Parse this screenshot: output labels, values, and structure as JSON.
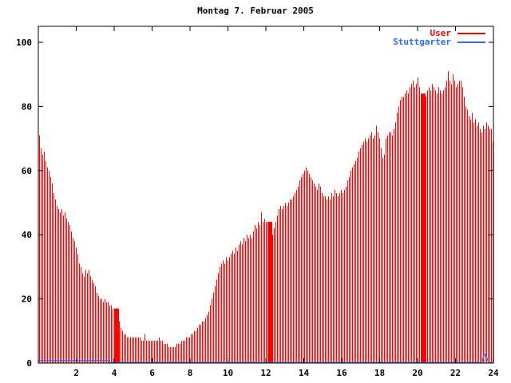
{
  "window": {
    "title": "gnuplot chart",
    "background": "#ffffff"
  },
  "chart_data": {
    "type": "bar",
    "title": "Montag 7. Februar 2005",
    "xlabel": "",
    "ylabel": "",
    "xlim": [
      0,
      24
    ],
    "ylim": [
      0,
      105
    ],
    "x_ticks": [
      2,
      4,
      6,
      8,
      10,
      12,
      14,
      16,
      18,
      20,
      22,
      24
    ],
    "y_ticks": [
      0,
      20,
      40,
      60,
      80,
      100
    ],
    "grid": "off",
    "legend_position": "top-right",
    "axis_color": "#000000",
    "text_color": "#000000",
    "sample_interval_minutes": 5,
    "series": [
      {
        "name": "User",
        "color": "#ff0000",
        "style": "impulses",
        "values": [
          71,
          67,
          65,
          66,
          63,
          61,
          60,
          58,
          56,
          53,
          51,
          49,
          48,
          47,
          48,
          46,
          47,
          45,
          44,
          43,
          41,
          39,
          38,
          36,
          34,
          31,
          30,
          28,
          27,
          29,
          28,
          29,
          27,
          26,
          25,
          24,
          22,
          21,
          20,
          20,
          19,
          20,
          19,
          19,
          18,
          18,
          17,
          17,
          17,
          17,
          13,
          11,
          10,
          9,
          9,
          8,
          8,
          8,
          8,
          8,
          8,
          8,
          8,
          8,
          7,
          7,
          9,
          7,
          7,
          7,
          7,
          7,
          7,
          7,
          7,
          8,
          7,
          7,
          6,
          6,
          6,
          5,
          5,
          5,
          5,
          5,
          6,
          6,
          6,
          7,
          7,
          7,
          8,
          8,
          8,
          9,
          9,
          10,
          10,
          11,
          12,
          12,
          13,
          13,
          14,
          15,
          16,
          18,
          20,
          22,
          24,
          26,
          28,
          30,
          31,
          32,
          31,
          33,
          32,
          33,
          34,
          35,
          34,
          36,
          35,
          37,
          38,
          37,
          39,
          38,
          40,
          39,
          40,
          39,
          41,
          43,
          42,
          44,
          43,
          47,
          44,
          45,
          44,
          44,
          44,
          44,
          40,
          42,
          44,
          46,
          48,
          49,
          48,
          49,
          50,
          49,
          50,
          51,
          51,
          52,
          53,
          54,
          55,
          57,
          58,
          59,
          60,
          61,
          60,
          59,
          58,
          57,
          56,
          55,
          54,
          56,
          55,
          53,
          52,
          52,
          51,
          52,
          51,
          53,
          52,
          54,
          53,
          52,
          53,
          54,
          53,
          54,
          55,
          57,
          58,
          60,
          61,
          62,
          63,
          64,
          66,
          67,
          68,
          69,
          70,
          69,
          70,
          71,
          72,
          70,
          71,
          74,
          72,
          70,
          67,
          64,
          65,
          70,
          71,
          72,
          72,
          71,
          73,
          75,
          78,
          80,
          82,
          83,
          83,
          84,
          85,
          84,
          86,
          87,
          88,
          86,
          87,
          89,
          86,
          84,
          84,
          84,
          83,
          85,
          86,
          85,
          87,
          86,
          85,
          84,
          86,
          85,
          84,
          85,
          86,
          88,
          91,
          88,
          87,
          90,
          88,
          86,
          87,
          88,
          88,
          86,
          83,
          80,
          79,
          77,
          76,
          78,
          75,
          76,
          74,
          75,
          73,
          72,
          74,
          73,
          75,
          74,
          73,
          73,
          69
        ],
        "solid_block_indices": [
          47,
          48,
          49,
          143,
          144,
          145,
          239,
          240,
          241
        ]
      },
      {
        "name": "Stuttgarter",
        "color": "#2a6cff",
        "style": "line",
        "points": [
          [
            0,
            0.8
          ],
          [
            3.7,
            0.8
          ],
          [
            3.78,
            0.15
          ],
          [
            23.4,
            0.15
          ],
          [
            23.46,
            1.6
          ],
          [
            23.5,
            2.6
          ],
          [
            23.56,
            3.0
          ],
          [
            23.62,
            2.2
          ],
          [
            23.68,
            1.2
          ],
          [
            23.74,
            0.15
          ],
          [
            24,
            0.15
          ]
        ]
      }
    ]
  }
}
